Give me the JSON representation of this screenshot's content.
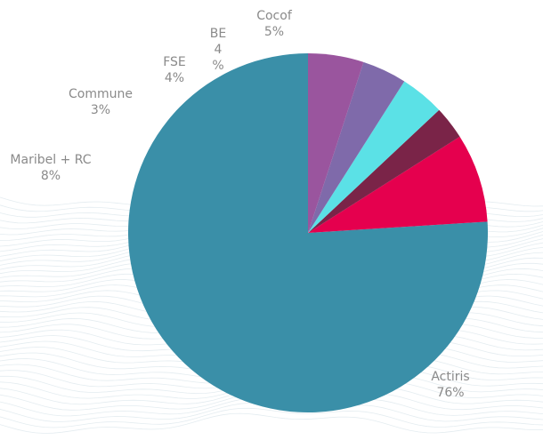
{
  "chart_data": {
    "type": "pie",
    "slices": [
      {
        "label": "Actiris",
        "value_label": "76%",
        "value": 76,
        "color": "#3a8fa8"
      },
      {
        "label": "Maribel + RC",
        "value_label": "8%",
        "value": 8,
        "color": "#e5004e"
      },
      {
        "label": "Commune",
        "value_label": "3%",
        "value": 3,
        "color": "#7a2448"
      },
      {
        "label": "FSE",
        "value_label": "4%",
        "value": 4,
        "color": "#5be1e6"
      },
      {
        "label": "BE",
        "value_label": "4\n%",
        "value": 4,
        "color": "#7f6aaa"
      },
      {
        "label": "Cocof",
        "value_label": "5%",
        "value": 5,
        "color": "#9a559e"
      }
    ],
    "start": "12 o'clock",
    "direction": "counterclockwise",
    "legend": "none",
    "title": ""
  }
}
